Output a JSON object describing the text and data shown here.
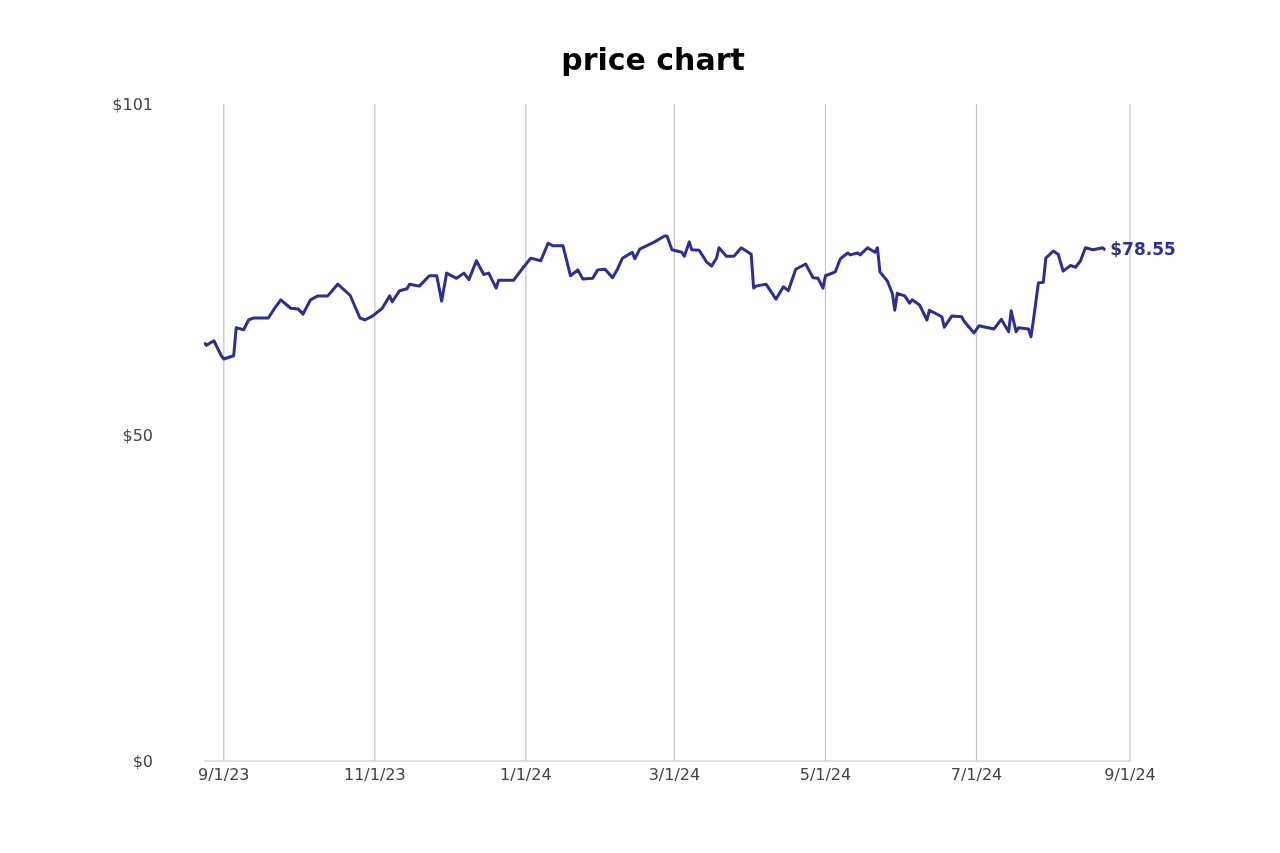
{
  "chart_data": {
    "type": "line",
    "title": "price chart",
    "x": [
      "2023-08-24",
      "2023-08-25",
      "2023-08-28",
      "2023-08-31",
      "2023-09-01",
      "2023-09-05",
      "2023-09-06",
      "2023-09-09",
      "2023-09-11",
      "2023-09-13",
      "2023-09-19",
      "2023-09-21",
      "2023-09-24",
      "2023-09-28",
      "2023-10-01",
      "2023-10-03",
      "2023-10-06",
      "2023-10-09",
      "2023-10-13",
      "2023-10-17",
      "2023-10-22",
      "2023-10-26",
      "2023-10-28",
      "2023-10-31",
      "2023-11-04",
      "2023-11-07",
      "2023-11-08",
      "2023-11-11",
      "2023-11-14",
      "2023-11-15",
      "2023-11-19",
      "2023-11-23",
      "2023-11-26",
      "2023-11-28",
      "2023-11-30",
      "2023-12-04",
      "2023-12-07",
      "2023-12-09",
      "2023-12-12",
      "2023-12-15",
      "2023-12-17",
      "2023-12-20",
      "2023-12-21",
      "2023-12-27",
      "2023-12-31",
      "2024-01-03",
      "2024-01-07",
      "2024-01-10",
      "2024-01-12",
      "2024-01-16",
      "2024-01-19",
      "2024-01-22",
      "2024-01-24",
      "2024-01-28",
      "2024-01-30",
      "2024-02-02",
      "2024-02-05",
      "2024-02-07",
      "2024-02-09",
      "2024-02-13",
      "2024-02-14",
      "2024-02-16",
      "2024-02-22",
      "2024-02-26",
      "2024-02-27",
      "2024-02-29",
      "2024-03-04",
      "2024-03-05",
      "2024-03-07",
      "2024-03-08",
      "2024-03-11",
      "2024-03-14",
      "2024-03-16",
      "2024-03-18",
      "2024-03-19",
      "2024-03-22",
      "2024-03-25",
      "2024-03-28",
      "2024-04-01",
      "2024-04-02",
      "2024-04-03",
      "2024-04-07",
      "2024-04-11",
      "2024-04-14",
      "2024-04-16",
      "2024-04-19",
      "2024-04-23",
      "2024-04-26",
      "2024-04-28",
      "2024-04-30",
      "2024-05-01",
      "2024-05-05",
      "2024-05-07",
      "2024-05-10",
      "2024-05-11",
      "2024-05-14",
      "2024-05-15",
      "2024-05-18",
      "2024-05-21",
      "2024-05-22",
      "2024-05-23",
      "2024-05-26",
      "2024-05-28",
      "2024-05-29",
      "2024-05-30",
      "2024-06-02",
      "2024-06-04",
      "2024-06-05",
      "2024-06-08",
      "2024-06-11",
      "2024-06-12",
      "2024-06-17",
      "2024-06-18",
      "2024-06-21",
      "2024-06-25",
      "2024-06-26",
      "2024-06-30",
      "2024-07-02",
      "2024-07-08",
      "2024-07-11",
      "2024-07-14",
      "2024-07-15",
      "2024-07-17",
      "2024-07-18",
      "2024-07-22",
      "2024-07-23",
      "2024-07-24",
      "2024-07-26",
      "2024-07-28",
      "2024-07-29",
      "2024-08-01",
      "2024-08-03",
      "2024-08-05",
      "2024-08-08",
      "2024-08-10",
      "2024-08-12",
      "2024-08-14",
      "2024-08-17",
      "2024-08-21",
      "2024-08-22"
    ],
    "series": [
      {
        "color": "#2e2e96",
        "values": [
          64.3,
          63.9,
          64.6,
          62.3,
          61.8,
          62.3,
          66.6,
          66.3,
          67.8,
          68.1,
          68.1,
          69.3,
          70.9,
          69.6,
          69.5,
          68.7,
          70.9,
          71.5,
          71.5,
          73.3,
          71.6,
          68.1,
          67.8,
          68.4,
          69.6,
          71.5,
          70.6,
          72.3,
          72.6,
          73.3,
          73.0,
          74.6,
          74.6,
          70.7,
          75.0,
          74.2,
          75.0,
          74.0,
          76.9,
          74.8,
          75.0,
          72.7,
          73.9,
          73.9,
          75.9,
          77.3,
          76.9,
          79.6,
          79.2,
          79.2,
          74.6,
          75.5,
          74.1,
          74.2,
          75.5,
          75.6,
          74.3,
          75.6,
          77.3,
          78.2,
          77.2,
          78.7,
          79.8,
          80.7,
          80.7,
          78.6,
          78.2,
          77.6,
          79.8,
          78.6,
          78.5,
          76.7,
          76.1,
          77.3,
          78.9,
          77.6,
          77.6,
          78.9,
          77.9,
          72.7,
          73.0,
          73.3,
          71.0,
          72.9,
          72.3,
          75.6,
          76.4,
          74.3,
          74.2,
          72.7,
          74.6,
          75.2,
          77.2,
          78.1,
          77.8,
          78.1,
          77.8,
          78.9,
          78.2,
          78.9,
          75.2,
          73.8,
          71.9,
          69.3,
          71.9,
          71.5,
          70.4,
          70.9,
          70.1,
          67.8,
          69.3,
          68.3,
          66.7,
          68.4,
          68.3,
          67.6,
          65.8,
          66.9,
          66.4,
          67.9,
          66.0,
          69.2,
          66.0,
          66.6,
          66.4,
          65.2,
          67.8,
          73.5,
          73.6,
          77.3,
          78.4,
          77.9,
          75.3,
          76.2,
          75.9,
          76.9,
          78.9,
          78.6,
          78.9,
          78.55
        ]
      }
    ],
    "xticks": [
      {
        "value": "2023-09-01",
        "label": "9/1/23"
      },
      {
        "value": "2023-11-01",
        "label": "11/1/23"
      },
      {
        "value": "2024-01-01",
        "label": "1/1/24"
      },
      {
        "value": "2024-03-01",
        "label": "3/1/24"
      },
      {
        "value": "2024-05-01",
        "label": "5/1/24"
      },
      {
        "value": "2024-07-01",
        "label": "7/1/24"
      },
      {
        "value": "2024-09-01",
        "label": "9/1/24"
      }
    ],
    "xlim": [
      "2023-08-24",
      "2024-09-01"
    ],
    "ylim": [
      0,
      101
    ],
    "yticks": [
      {
        "value": 0,
        "label": "$0"
      },
      {
        "value": 50,
        "label": "$50"
      },
      {
        "value": 101,
        "label": "$101"
      }
    ],
    "grid": "x",
    "legend": false,
    "marker": "none",
    "line_style": "solid",
    "annotations": [
      {
        "text": "$78.55",
        "x": "2024-08-22",
        "y": 78.55
      }
    ]
  }
}
